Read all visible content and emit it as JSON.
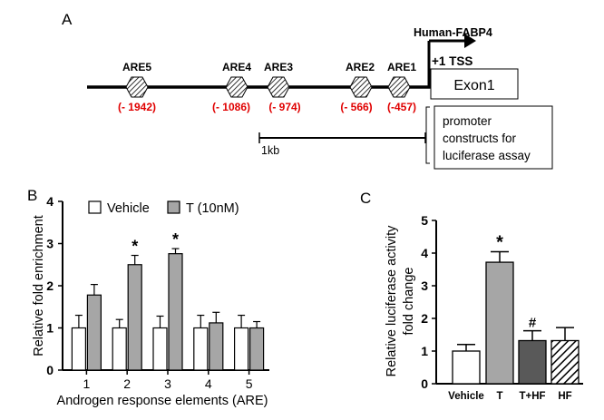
{
  "panel_a": {
    "label": "A",
    "gene": "Human-FABP4",
    "tss": "+1 TSS",
    "exon": "Exon1",
    "elements": [
      {
        "name": "ARE5",
        "position": "(- 1942)"
      },
      {
        "name": "ARE4",
        "position": "(- 1086)"
      },
      {
        "name": "ARE3",
        "position": "(- 974)"
      },
      {
        "name": "ARE2",
        "position": "(- 566)"
      },
      {
        "name": "ARE1",
        "position": "(-457)"
      }
    ],
    "scale": "1kb",
    "note": [
      "promoter",
      "constructs for",
      "luciferase assay"
    ]
  },
  "chart_data": [
    {
      "panel": "B",
      "type": "bar",
      "categories": [
        "1",
        "2",
        "3",
        "4",
        "5"
      ],
      "series": [
        {
          "name": "Vehicle",
          "values": [
            1.0,
            1.0,
            1.0,
            1.0,
            1.0
          ],
          "errors": [
            0.3,
            0.2,
            0.28,
            0.3,
            0.3
          ],
          "color": "#ffffff"
        },
        {
          "name": "T (10nM)",
          "values": [
            1.78,
            2.5,
            2.76,
            1.12,
            1.0
          ],
          "errors": [
            0.25,
            0.22,
            0.12,
            0.25,
            0.15
          ],
          "color": "#a6a6a6"
        }
      ],
      "significance": [
        "",
        "*",
        "*",
        "",
        ""
      ],
      "xlabel": "Androgen response elements (ARE)",
      "ylabel": "Relative fold enrichment",
      "ylim": [
        0,
        4
      ],
      "yticks": [
        "0",
        "1",
        "2",
        "3",
        "4"
      ],
      "legend_position": "top-left"
    },
    {
      "panel": "C",
      "type": "bar",
      "categories": [
        "Vehicle",
        "T",
        "T+HF",
        "HF"
      ],
      "values": [
        1.0,
        3.72,
        1.32,
        1.32
      ],
      "errors": [
        0.2,
        0.32,
        0.3,
        0.4
      ],
      "colors": [
        "#ffffff",
        "#a6a6a6",
        "#595959",
        "hatch"
      ],
      "significance": [
        "",
        "*",
        "#",
        ""
      ],
      "ylabel": [
        "Relative luciferase activity",
        "fold change"
      ],
      "ylim": [
        0,
        5
      ],
      "yticks": [
        "0",
        "1",
        "2",
        "3",
        "4",
        "5"
      ]
    }
  ]
}
